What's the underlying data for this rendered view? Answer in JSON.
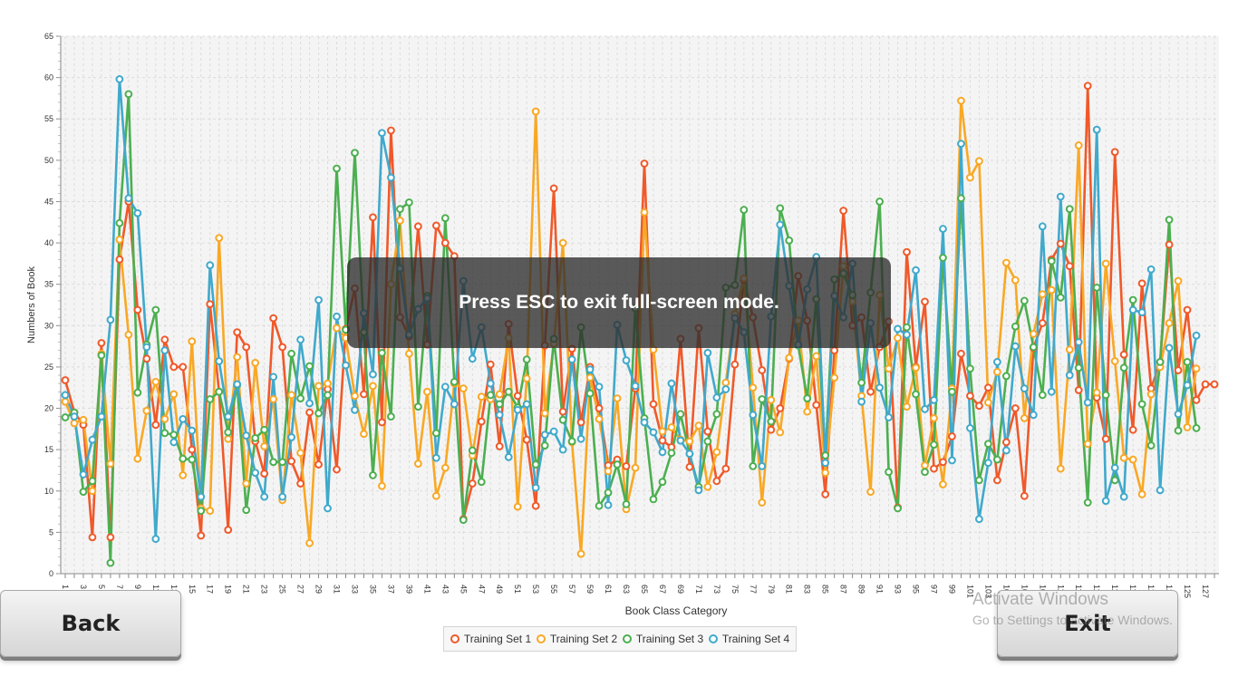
{
  "chart_data": {
    "type": "line",
    "title": "",
    "xlabel": "Book Class Category",
    "ylabel": "Numbers of Book",
    "ylim": [
      0,
      65
    ],
    "y_ticks": [
      0,
      5,
      10,
      15,
      20,
      25,
      30,
      35,
      40,
      45,
      50,
      55,
      60,
      65
    ],
    "x_tick_labels": [
      "1",
      "3",
      "5",
      "7",
      "9",
      "11",
      "13",
      "15",
      "17",
      "19",
      "21",
      "23",
      "25",
      "27",
      "29",
      "31",
      "33",
      "35",
      "37",
      "39",
      "41",
      "43",
      "45",
      "47",
      "49",
      "51",
      "53",
      "55",
      "57",
      "59",
      "61",
      "63",
      "65",
      "67",
      "69",
      "71",
      "73",
      "75",
      "77",
      "79",
      "81",
      "83",
      "85",
      "87",
      "89",
      "91",
      "93",
      "95",
      "97",
      "99",
      "101",
      "103",
      "105",
      "107",
      "109",
      "111",
      "113",
      "115",
      "117",
      "119",
      "121",
      "123",
      "125",
      "127"
    ],
    "grid": true,
    "legend_position": "bottom",
    "series": [
      {
        "name": "Training Set 1",
        "color": "#f0592a",
        "values": [
          23.4,
          19.5,
          18,
          4.4,
          27.9,
          4.4,
          38,
          45,
          31.9,
          26,
          18,
          28.3,
          25,
          25,
          15,
          4.6,
          32.6,
          22,
          5.3,
          29.2,
          27.4,
          16,
          12.1,
          30.9,
          27.4,
          13.6,
          10.9,
          19.5,
          13.2,
          22.3,
          12.6,
          29.6,
          34.5,
          21.7,
          43.1,
          18.3,
          53.6,
          31,
          28.7,
          42,
          27.7,
          42.1,
          40,
          38.4,
          6.6,
          10.9,
          18.4,
          25.3,
          15.4,
          30.2,
          21.5,
          16.2,
          8.2,
          27.6,
          46.6,
          19.6,
          27.2,
          18.3,
          25,
          20,
          13.1,
          13.8,
          13,
          22.4,
          49.6,
          20.5,
          16.1,
          15.3,
          28.4,
          12.9,
          29.7,
          17.2,
          11.2,
          12.7,
          25.3,
          35.5,
          31,
          24.6,
          17.4,
          20,
          26,
          36,
          30.6,
          20.4,
          9.6,
          27,
          43.9,
          30,
          31,
          22,
          27.4,
          30.5,
          8,
          38.9,
          25,
          32.9,
          12.7,
          13.5,
          16.6,
          26.6,
          21.5,
          20.3,
          22.5,
          11.3,
          15.9,
          20,
          9.4,
          27.3,
          30.3,
          38,
          39.9,
          37.2,
          22.2,
          59,
          21.3,
          16.3,
          51,
          26.5,
          17.4,
          35.1,
          22.4,
          25.6,
          39.8,
          24.6,
          31.9,
          21,
          22.9,
          22.9
        ]
      },
      {
        "name": "Training Set 2",
        "color": "#f9a825",
        "values": [
          20.8,
          18.2,
          18.6,
          10,
          26.6,
          13.3,
          40.4,
          28.9,
          13.9,
          19.7,
          23.2,
          18.7,
          21.7,
          11.9,
          28.1,
          7.9,
          7.6,
          40.6,
          16.3,
          26.2,
          10.9,
          25.5,
          15.4,
          21.1,
          8.9,
          21.6,
          14.6,
          3.7,
          22.7,
          23,
          29.7,
          28.5,
          21.5,
          16.9,
          22.7,
          10.6,
          35,
          42.7,
          26.6,
          13.3,
          22,
          9.4,
          12.8,
          23,
          22.4,
          14.3,
          21.4,
          21.1,
          21.7,
          28.5,
          8.1,
          23.6,
          55.9,
          19.4,
          27.8,
          40,
          15.9,
          2.4,
          23.7,
          18.7,
          12.4,
          21.2,
          7.8,
          12.8,
          43.7,
          27.1,
          17.2,
          17.7,
          16.2,
          16,
          17.9,
          10.5,
          14.7,
          23.1,
          31.4,
          35.7,
          22.5,
          8.6,
          21,
          17.1,
          26.1,
          30.6,
          19.6,
          26.3,
          12.2,
          23.7,
          37.2,
          32.9,
          21.5,
          9.9,
          33.7,
          24.8,
          28.5,
          20.2,
          24.9,
          13.1,
          18.8,
          10.8,
          22.4,
          57.2,
          47.9,
          49.9,
          20.7,
          24.4,
          37.6,
          35.5,
          18.8,
          29,
          33.8,
          34.3,
          12.7,
          27.1,
          51.8,
          15.7,
          21.9,
          37.5,
          25.7,
          14,
          13.8,
          9.6,
          21.7,
          25,
          30.3,
          35.4,
          17.7,
          24.8
        ]
      },
      {
        "name": "Training Set 3",
        "color": "#4caf50",
        "values": [
          18.9,
          19.5,
          9.9,
          11.2,
          26.4,
          1.3,
          42.4,
          58,
          21.9,
          27.7,
          31.9,
          17,
          16.8,
          13.9,
          13.8,
          7.6,
          21.1,
          22,
          17.1,
          22.8,
          7.7,
          16.4,
          17.4,
          13.5,
          13.5,
          26.6,
          21.2,
          25.1,
          19.4,
          21.6,
          49,
          29.5,
          50.9,
          29.2,
          11.9,
          26.7,
          19,
          44.1,
          44.9,
          20.2,
          33.6,
          17,
          43,
          23.2,
          6.5,
          14.9,
          11.1,
          21.6,
          20.5,
          22,
          20.1,
          25.9,
          13.2,
          15.5,
          28.4,
          18.6,
          16,
          29.8,
          21.8,
          8.2,
          9.8,
          13.2,
          8.4,
          32.1,
          18.8,
          9,
          11.1,
          14.6,
          19.3,
          14.5,
          10.5,
          16,
          19.3,
          34.6,
          34.9,
          44,
          13,
          21.1,
          18.4,
          44.2,
          40.3,
          27.6,
          21.2,
          33.2,
          14.3,
          35.6,
          36.3,
          33.7,
          23.1,
          34,
          45,
          12.3,
          7.9,
          29.8,
          21.7,
          12.3,
          15.6,
          38.2,
          22,
          45.4,
          24.8,
          11.3,
          15.7,
          13.8,
          23.9,
          29.9,
          33,
          27.4,
          21.6,
          37.8,
          33.4,
          44.1,
          24.9,
          8.6,
          34.6,
          21.6,
          11.3,
          24.9,
          33.1,
          20.5,
          15.5,
          25.6,
          42.8,
          17.3,
          25.6,
          17.6
        ]
      },
      {
        "name": "Training Set 4",
        "color": "#40a9cc",
        "values": [
          21.6,
          19,
          12,
          16.2,
          19,
          30.7,
          59.8,
          45.4,
          43.6,
          27.4,
          4.2,
          27,
          15.9,
          18.7,
          17.3,
          9.3,
          37.3,
          25.7,
          19,
          22.9,
          16.7,
          12.2,
          9.3,
          23.8,
          9.3,
          16.5,
          28.3,
          20.6,
          33.1,
          7.9,
          31.1,
          25.2,
          19.8,
          31.5,
          24.1,
          53.3,
          47.9,
          36.9,
          28.9,
          32,
          33.3,
          14,
          22.6,
          20.5,
          35.4,
          26,
          29.8,
          23,
          19.2,
          14.1,
          19.8,
          20.5,
          10.4,
          16.8,
          17.2,
          15,
          25.9,
          16.3,
          24.7,
          22.6,
          8.3,
          30.1,
          25.8,
          22.7,
          18.3,
          17.1,
          14.7,
          23,
          16.1,
          14.5,
          10.1,
          26.7,
          21.3,
          22.3,
          30.9,
          29.2,
          19.2,
          13,
          31.1,
          42.2,
          34.8,
          27.7,
          34.4,
          38.3,
          13.4,
          33.6,
          31,
          37.5,
          20.8,
          30.3,
          22.5,
          18.9,
          29.6,
          28.9,
          36.7,
          19.9,
          21,
          41.7,
          13.7,
          52,
          17.6,
          6.6,
          13.4,
          25.6,
          14.9,
          27.5,
          22.4,
          19.2,
          42,
          22,
          45.6,
          24,
          28,
          20.7,
          53.7,
          8.8,
          12.8,
          9.3,
          31.9,
          31.6,
          36.8,
          10.1,
          27.3,
          19.3,
          22.8,
          28.8
        ]
      }
    ]
  },
  "overlay": {
    "message": "Press ESC to exit full-screen mode."
  },
  "buttons": {
    "back_label": "Back",
    "exit_label": "Exit"
  },
  "watermark": {
    "title": "Activate Windows",
    "subtitle": "Go to Settings to activate Windows."
  }
}
